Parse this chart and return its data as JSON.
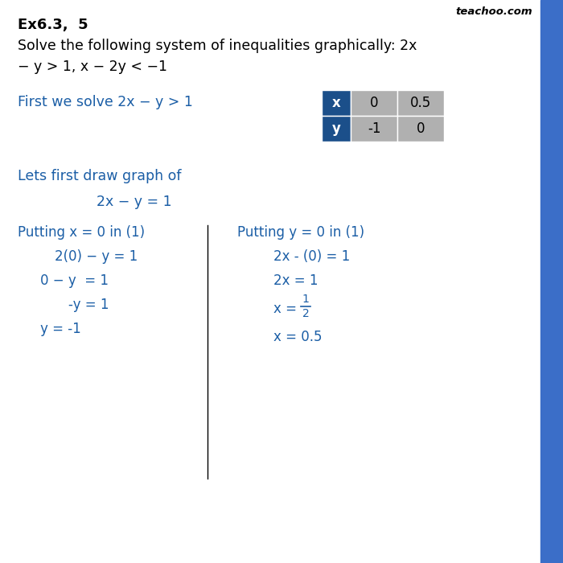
{
  "title": "Ex6.3,  5",
  "watermark": "teachoo.com",
  "bg_color": "#ffffff",
  "blue_color": "#1B5EA6",
  "dark_blue": "#1B4F8A",
  "text_color": "#000000",
  "sidebar_color": "#3B6EC8",
  "line1": "Solve the following system of inequalities graphically: 2x",
  "line2": "− y > 1, x − 2y < −1",
  "section1": "First we solve 2x − y > 1",
  "section2": "Lets first draw graph of",
  "eq1": "2x − y = 1",
  "col1_header": "Putting x = 0 in (1)",
  "col2_header": "Putting y = 0 in (1)",
  "col1_line1": "2(0) − y = 1",
  "col1_line2": "0 − y  = 1",
  "col1_line3": "-y = 1",
  "col1_line4": "y = -1",
  "col2_line1": "2x - (0) = 1",
  "col2_line2": "2x = 1",
  "col2_frac_prefix": "x = ",
  "col2_frac_num": "1",
  "col2_frac_den": "2",
  "col2_line4": "x = 0.5",
  "table_x_header": "x",
  "table_y_header": "y",
  "table_x_vals": [
    "0",
    "0.5"
  ],
  "table_y_vals": [
    "-1",
    "0"
  ],
  "table_header_bg": "#1B4F8A",
  "table_cell_bg": "#B0B0B0",
  "table_header_text": "#ffffff"
}
